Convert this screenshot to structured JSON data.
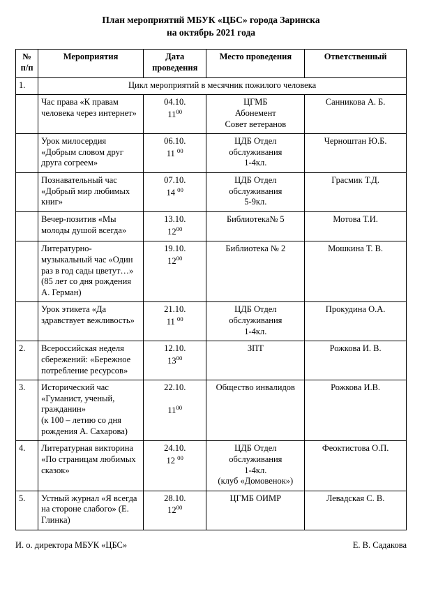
{
  "title_line1": "План мероприятий МБУК «ЦБС» города Заринска",
  "title_line2": "на октябрь 2021 года",
  "headers": {
    "num": "№ п/п",
    "event": "Мероприятия",
    "date": "Дата проведения",
    "place": "Место проведения",
    "resp": "Ответственный"
  },
  "section": {
    "num": "1.",
    "title": "Цикл мероприятий в месячник пожилого человека"
  },
  "rows_section": [
    {
      "event": "Час права «К правам человека через интернет»",
      "day": "04.10.",
      "hour": "11",
      "min": "00",
      "place": "ЦГМБ\nАбонемент\nСовет ветеранов",
      "resp": "Санникова А. Б."
    },
    {
      "event": "Урок милосердия «Добрым словом друг друга согреем»",
      "day": "06.10.",
      "hour": "11",
      "min": "00",
      "spaced": true,
      "place": "ЦДБ Отдел обслуживания\n1-4кл.",
      "resp": "Черноштан Ю.Б."
    },
    {
      "event": "Познавательный час «Добрый мир любимых книг»",
      "day": "07.10.",
      "hour": "14",
      "min": "00",
      "spaced": true,
      "place": "ЦДБ Отдел обслуживания\n5-9кл.",
      "resp": "Грасмик Т.Д."
    },
    {
      "event": "Вечер-позитив «Мы молоды душой всегда»",
      "day": "13.10.",
      "hour": "12",
      "min": "00",
      "place": "Библиотека№ 5",
      "resp": "Мотова Т.И."
    },
    {
      "event": "Литературно-музыкальный час «Один раз в год сады цветут…»  (85 лет со дня рождения А. Герман)",
      "day": "19.10.",
      "hour": "12",
      "min": "00",
      "place": "Библиотека № 2",
      "resp": "Мошкина Т. В."
    },
    {
      "event": "Урок этикета «Да здравствует вежливость»",
      "day": "21.10.",
      "hour": "11",
      "min": "00",
      "spaced": true,
      "place": "ЦДБ Отдел обслуживания\n1-4кл.",
      "resp": "Прокудина О.А."
    }
  ],
  "rows_numbered": [
    {
      "num": "2.",
      "event": "Всероссийская неделя сбережений: «Бережное потребление ресурсов»",
      "day": "12.10.",
      "hour": "13",
      "min": "00",
      "place": "ЗПТ",
      "resp": "Рожкова И. В."
    },
    {
      "num": "3.",
      "event": "Исторический час «Гуманист, ученый, гражданин»\n(к 100 – летию со дня рождения А. Сахарова)",
      "day": "22.10.",
      "hour": "11",
      "min": "00",
      "gap": true,
      "place": "Общество инвалидов",
      "resp": "Рожкова И.В."
    },
    {
      "num": "4.",
      "event": "Литературная викторина «По страницам любимых сказок»",
      "day": "24.10.",
      "hour": "12",
      "min": "00",
      "spaced": true,
      "place": "ЦДБ Отдел обслуживания\n1-4кл.\n(клуб «Домовенок»)",
      "resp": "Феоктистова О.П."
    },
    {
      "num": "5.",
      "event": "Устный журнал «Я всегда на стороне слабого» (Е. Глинка)",
      "day": "28.10.",
      "hour": "12",
      "min": "00",
      "place": "ЦГМБ ОИМР",
      "resp": "Левадская С. В."
    }
  ],
  "footer_left": "И. о. директора МБУК «ЦБС»",
  "footer_right": "Е. В. Садакова"
}
